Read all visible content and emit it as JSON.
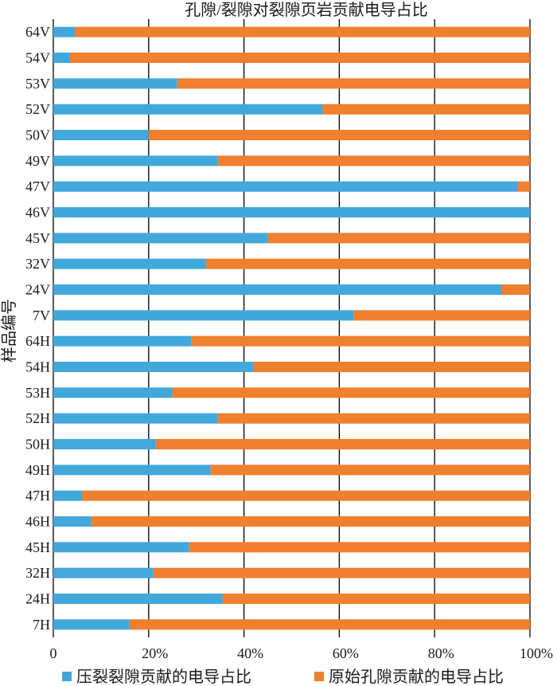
{
  "chart_data": {
    "type": "bar",
    "orientation": "horizontal",
    "stacked": true,
    "title": "孔隙/裂隙对裂隙页岩贡献电导占比",
    "ylabel": "样品编号",
    "xlabel": "",
    "xlim": [
      0,
      100
    ],
    "x_ticks": [
      "0",
      "20%",
      "40%",
      "60%",
      "80%",
      "100%"
    ],
    "grid": true,
    "legend_position": "bottom",
    "categories": [
      "64V",
      "54V",
      "53V",
      "52V",
      "50V",
      "49V",
      "47V",
      "46V",
      "45V",
      "32V",
      "24V",
      "7V",
      "64H",
      "54H",
      "53H",
      "52H",
      "50H",
      "49H",
      "47H",
      "46H",
      "45H",
      "32H",
      "24H",
      "7H"
    ],
    "series": [
      {
        "name": "压裂裂隙贡献的电导占比",
        "color": "#41a8dc",
        "values": [
          4.5,
          3.5,
          26,
          56.5,
          20,
          34.5,
          97.5,
          100,
          45,
          32,
          94,
          63,
          29,
          42,
          25,
          34.5,
          21.5,
          33,
          6,
          8,
          28.5,
          21,
          35.5,
          16
        ]
      },
      {
        "name": "原始孔隙贡献的电导占比",
        "color": "#f07f2e",
        "values": [
          95.5,
          96.5,
          74,
          43.5,
          80,
          65.5,
          2.5,
          0,
          55,
          68,
          6,
          37,
          71,
          58,
          75,
          65.5,
          78.5,
          67,
          94,
          92,
          71.5,
          79,
          64.5,
          84
        ]
      }
    ]
  }
}
